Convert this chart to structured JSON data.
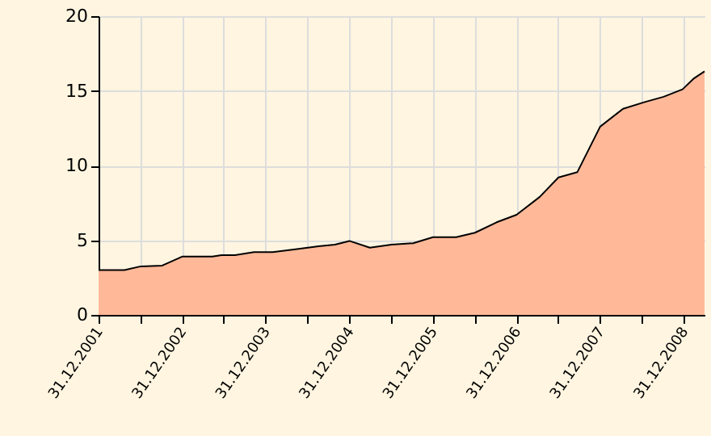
{
  "chart_data": {
    "type": "area",
    "x": [
      "2001-12-31",
      "2002-04-23",
      "2002-07-03",
      "2002-10-05",
      "2002-12-31",
      "2003-05-12",
      "2003-06-21",
      "2003-08-19",
      "2003-11-10",
      "2004-01-31",
      "2004-05-16",
      "2004-08-18",
      "2004-10-28",
      "2004-12-31",
      "2005-03-30",
      "2005-07-02",
      "2005-10-05",
      "2005-12-31",
      "2006-04-11",
      "2006-07-02",
      "2006-10-05",
      "2006-12-31",
      "2007-04-11",
      "2007-07-02",
      "2007-09-22",
      "2007-12-31",
      "2008-04-09",
      "2008-07-13",
      "2008-10-03",
      "2008-12-25",
      "2009-02-10",
      "2009-03-31"
    ],
    "series": [
      {
        "color": "#ffb999",
        "values": [
          3.0,
          3.0,
          3.25,
          3.3,
          3.9,
          3.9,
          4.0,
          4.0,
          4.2,
          4.2,
          4.4,
          4.6,
          4.7,
          4.95,
          4.5,
          4.7,
          4.8,
          5.2,
          5.2,
          5.5,
          6.2,
          6.7,
          7.9,
          9.2,
          9.55,
          12.6,
          13.8,
          14.25,
          14.6,
          15.1,
          15.8,
          16.3
        ]
      }
    ],
    "xlim": [
      "2001-12-31",
      "2009-03-31"
    ],
    "xticks": [
      {
        "value": "2001-12-31",
        "label": "31.12.2001"
      },
      {
        "value": "2002-06-30",
        "label": null
      },
      {
        "value": "2002-12-31",
        "label": "31.12.2002"
      },
      {
        "value": "2003-06-30",
        "label": null
      },
      {
        "value": "2003-12-31",
        "label": "31.12.2003"
      },
      {
        "value": "2004-06-30",
        "label": null
      },
      {
        "value": "2004-12-31",
        "label": "31.12.2004"
      },
      {
        "value": "2005-06-30",
        "label": null
      },
      {
        "value": "2005-12-31",
        "label": "31.12.2005"
      },
      {
        "value": "2006-06-30",
        "label": null
      },
      {
        "value": "2006-12-31",
        "label": "31.12.2006"
      },
      {
        "value": "2007-06-30",
        "label": null
      },
      {
        "value": "2007-12-31",
        "label": "31.12.2007"
      },
      {
        "value": "2008-06-30",
        "label": null
      },
      {
        "value": "2008-12-31",
        "label": "31.12.2008"
      }
    ],
    "ylim": [
      0,
      20
    ],
    "yticks": [
      0,
      5,
      10,
      15,
      20
    ],
    "grid": true
  }
}
